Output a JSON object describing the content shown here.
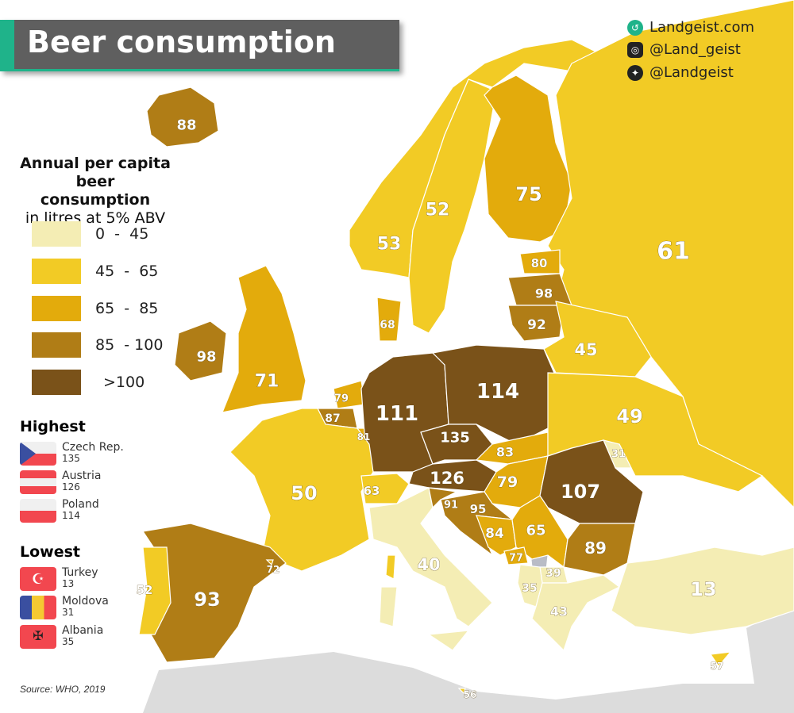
{
  "header": {
    "title": "Beer consumption"
  },
  "social": [
    {
      "icon": "landgeist-logo-icon",
      "label": "Landgeist.com"
    },
    {
      "icon": "instagram-icon",
      "label": "@Land_geist"
    },
    {
      "icon": "twitter-icon",
      "label": "@Landgeist"
    }
  ],
  "legend": {
    "title_line1": "Annual per capita",
    "title_line2": "beer consumption",
    "title_line3": "in litres at 5% ABV",
    "bins": [
      {
        "label": "0  -  45",
        "color": "#f4edb4"
      },
      {
        "label": "45  -  65",
        "color": "#f2cb25"
      },
      {
        "label": "65  -  85",
        "color": "#e3ab0c"
      },
      {
        "label": "85  - 100",
        "color": "#b07d16"
      },
      {
        "label": ">100",
        "color": "#7a5219"
      }
    ]
  },
  "highest": {
    "heading": "Highest",
    "items": [
      {
        "country": "Czech Rep.",
        "value": "135",
        "flag": "czech-flag"
      },
      {
        "country": "Austria",
        "value": "126",
        "flag": "austria-flag"
      },
      {
        "country": "Poland",
        "value": "114",
        "flag": "poland-flag"
      }
    ]
  },
  "lowest": {
    "heading": "Lowest",
    "items": [
      {
        "country": "Turkey",
        "value": "13",
        "flag": "turkey-flag"
      },
      {
        "country": "Moldova",
        "value": "31",
        "flag": "moldova-flag"
      },
      {
        "country": "Albania",
        "value": "35",
        "flag": "albania-flag"
      }
    ]
  },
  "source": "Source: WHO, 2019",
  "no_data_color": "#b9bcc6",
  "map_values": {
    "iceland": 88,
    "norway": 53,
    "sweden": 52,
    "finland": 75,
    "russia": 61,
    "estonia": 80,
    "latvia": 98,
    "lithuania": 92,
    "belarus": 45,
    "denmark": 68,
    "ireland": 98,
    "uk": 71,
    "netherlands": 79,
    "belgium": 87,
    "luxembourg": 81,
    "germany": 111,
    "poland": 114,
    "czechia": 135,
    "austria": 126,
    "slovakia": 83,
    "hungary": 79,
    "ukraine": 49,
    "moldova": 31,
    "romania": 107,
    "france": 50,
    "switzerland": 63,
    "italy": 40,
    "slovenia": 91,
    "croatia": 95,
    "bosnia": 84,
    "serbia": 65,
    "montenegro": 77,
    "bulgaria": 89,
    "north-macedonia": 39,
    "albania": 35,
    "greece": 43,
    "turkey": 13,
    "cyprus": 57,
    "malta": 56,
    "spain": 93,
    "portugal": 52,
    "andorra": 72
  }
}
